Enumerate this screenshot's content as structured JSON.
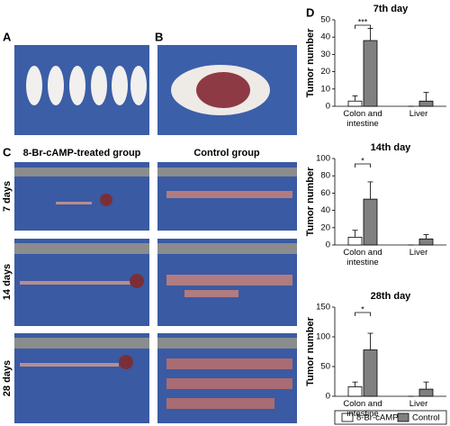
{
  "panel_labels": [
    "A",
    "B",
    "C",
    "D"
  ],
  "group_headings": [
    "8-Br-cAMP-treated group",
    "Control group"
  ],
  "time_rows": [
    "7 days",
    "14 days",
    "28 days"
  ],
  "chart_data": [
    {
      "type": "bar",
      "title": "7th day",
      "ylabel": "Tumor number",
      "categories": [
        "Colon and intestine",
        "Liver"
      ],
      "ylim": [
        0,
        50
      ],
      "yticks": [
        0,
        10,
        20,
        30,
        40,
        50
      ],
      "significance": "***",
      "series": [
        {
          "color": "#ffffff",
          "values": [
            3,
            0
          ],
          "errors": [
            3,
            0
          ]
        },
        {
          "color": "#808080",
          "values": [
            38,
            3
          ],
          "errors": [
            7,
            5
          ]
        }
      ]
    },
    {
      "type": "bar",
      "title": "14th day",
      "ylabel": "Tumor number",
      "categories": [
        "Colon and intestine",
        "Liver"
      ],
      "ylim": [
        0,
        100
      ],
      "yticks": [
        0,
        20,
        40,
        60,
        80,
        100
      ],
      "significance": "*",
      "series": [
        {
          "color": "#ffffff",
          "values": [
            9,
            0
          ],
          "errors": [
            8,
            0
          ]
        },
        {
          "color": "#808080",
          "values": [
            53,
            7
          ],
          "errors": [
            20,
            5
          ]
        }
      ]
    },
    {
      "type": "bar",
      "title": "28th day",
      "ylabel": "Tumor number",
      "categories": [
        "Colon and intestine",
        "Liver"
      ],
      "ylim": [
        0,
        150
      ],
      "yticks": [
        0,
        50,
        100,
        150
      ],
      "significance": "*",
      "series": [
        {
          "name": "8-Br-cAMP",
          "color": "#ffffff",
          "values": [
            16,
            0
          ],
          "errors": [
            8,
            0
          ]
        },
        {
          "name": "Control",
          "color": "#808080",
          "values": [
            78,
            12
          ],
          "errors": [
            28,
            12
          ]
        }
      ]
    }
  ]
}
